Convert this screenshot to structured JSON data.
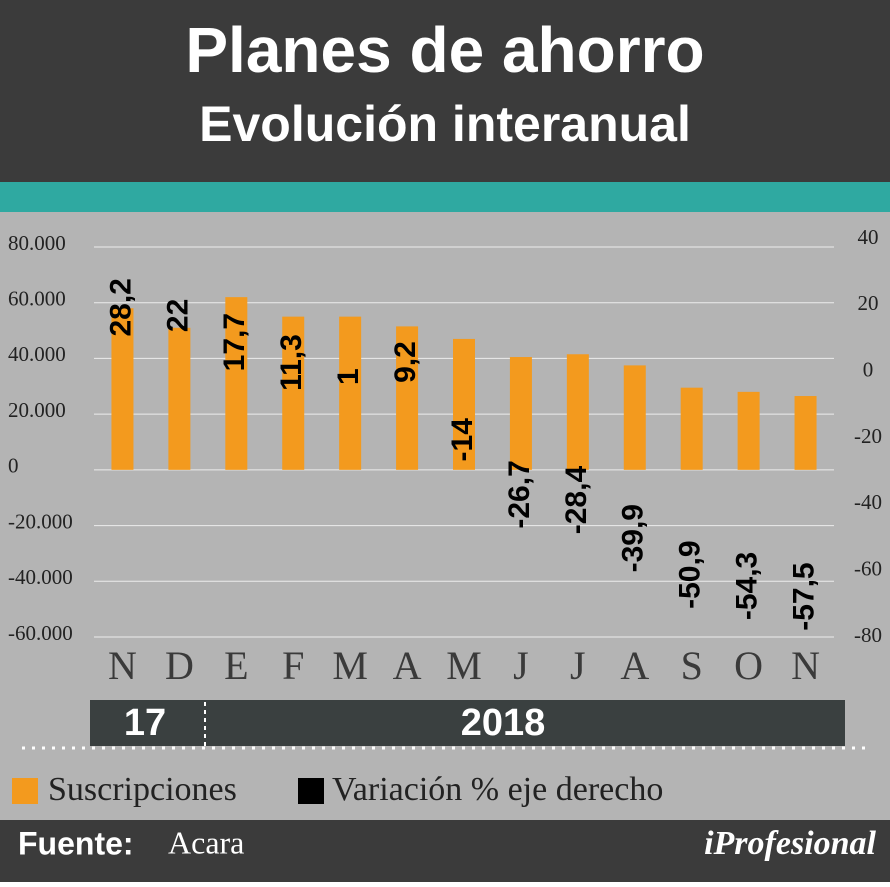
{
  "chart_data": {
    "type": "bar",
    "title": "Planes de ahorro",
    "subtitle": "Evolución interanual",
    "categories": [
      "N",
      "D",
      "E",
      "F",
      "M",
      "A",
      "M",
      "J",
      "J",
      "A",
      "S",
      "O",
      "N"
    ],
    "periods": [
      "17",
      "2018"
    ],
    "series": [
      {
        "name": "Suscripciones",
        "color": "#f39a1e",
        "axis": "y",
        "values": [
          58000,
          51000,
          62000,
          55000,
          55000,
          51500,
          47000,
          40500,
          41500,
          37500,
          29500,
          28000,
          26500
        ]
      },
      {
        "name": "Variación % eje derecho",
        "color": "#000000",
        "axis": "y2",
        "values": [
          28.2,
          22,
          17.7,
          11.3,
          1,
          9.2,
          -14,
          -26.7,
          -28.4,
          -39.9,
          -50.9,
          -54.3,
          -57.5
        ],
        "value_labels": [
          "28,2",
          "22",
          "17,7",
          "11,3",
          "1",
          "9,2",
          "-14",
          "-26,7",
          "-28,4",
          "-39,9",
          "-50,9",
          "-54,3",
          "-57,5"
        ]
      }
    ],
    "ylim": [
      -60000,
      80000
    ],
    "yticks": [
      {
        "value": 80000,
        "label": "80.000"
      },
      {
        "value": 60000,
        "label": "60.000"
      },
      {
        "value": 40000,
        "label": "40.000"
      },
      {
        "value": 20000,
        "label": "20.000"
      },
      0,
      {
        "value": -20000,
        "label": "-20.000"
      },
      {
        "value": -40000,
        "label": "-40.000"
      },
      {
        "value": -60000,
        "label": "-60.000"
      }
    ],
    "y2lim": [
      -80,
      40
    ],
    "y2ticks": [
      40,
      20,
      0,
      -20,
      -40,
      -60,
      -80
    ],
    "grid": true,
    "source_label": "Fuente:",
    "source": "Acara",
    "brand": "iProfesional"
  }
}
